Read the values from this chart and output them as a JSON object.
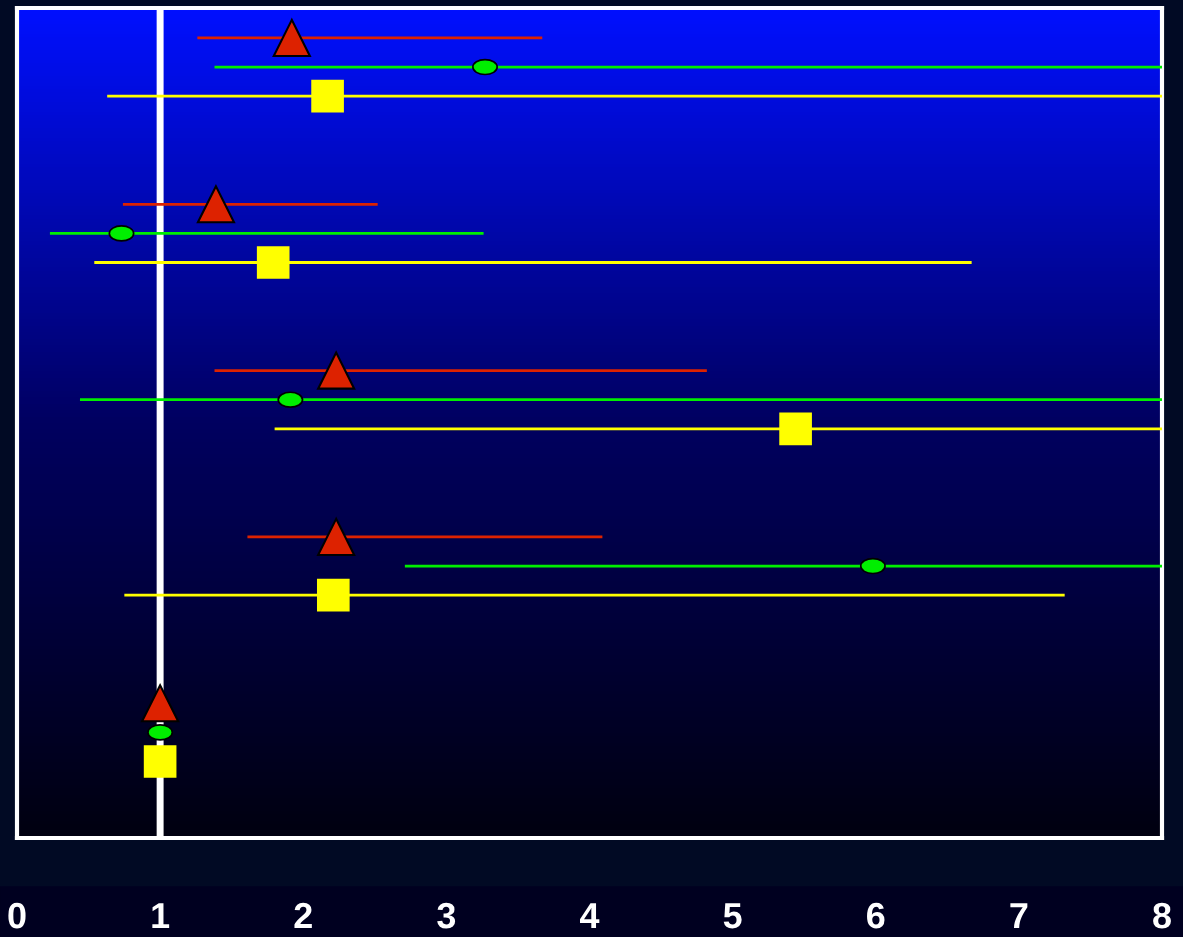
{
  "chart_data": {
    "type": "scatter",
    "orientation": "horizontal",
    "categories": [
      null,
      null,
      null,
      null,
      null
    ],
    "xlim": [
      0,
      8
    ],
    "xticks": [
      0,
      1,
      2,
      3,
      4,
      5,
      6,
      7,
      8
    ],
    "tick_labels": "x",
    "grid": false,
    "series": [
      {
        "color": "#dd2200",
        "marker": "triangle",
        "values": [
          1.92,
          1.39,
          2.23,
          2.23,
          1
        ],
        "errors": [
          [
            1.26,
            3.67
          ],
          [
            0.74,
            2.52
          ],
          [
            1.38,
            4.82
          ],
          [
            1.61,
            4.09
          ],
          null
        ]
      },
      {
        "color": "#00ee00",
        "marker": "circle",
        "values": [
          3.27,
          0.73,
          1.91,
          5.98,
          1
        ],
        "errors": [
          [
            1.38,
            8
          ],
          [
            0.23,
            3.26
          ],
          [
            0.44,
            8
          ],
          [
            2.71,
            8
          ],
          null
        ]
      },
      {
        "color": "#ffff00",
        "marker": "square",
        "values": [
          2.17,
          1.79,
          5.44,
          2.21,
          1
        ],
        "errors": [
          [
            0.63,
            8
          ],
          [
            0.54,
            6.67
          ],
          [
            1.8,
            8
          ],
          [
            0.75,
            7.32
          ],
          null
        ]
      }
    ],
    "ref_lines": [
      {
        "axis": "x",
        "value": 1,
        "color": "#ffffff"
      }
    ]
  }
}
